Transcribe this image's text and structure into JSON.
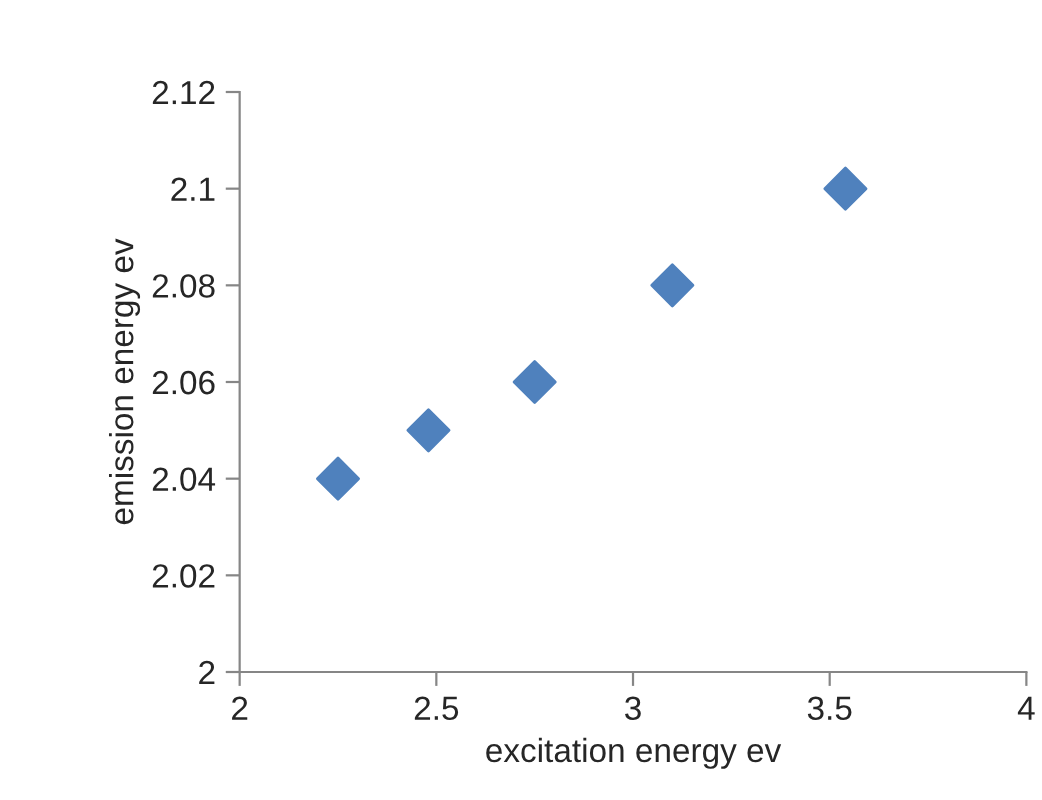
{
  "chart_data": {
    "type": "scatter",
    "xlabel": "excitation energy ev",
    "ylabel": "emission energy ev",
    "x": [
      2.25,
      2.48,
      2.75,
      3.1,
      3.54
    ],
    "series": [
      {
        "color": "#4f81bd",
        "values": [
          2.04,
          2.05,
          2.06,
          2.08,
          2.1
        ]
      }
    ],
    "marker": "diamond",
    "grid": false,
    "legend": false,
    "xlim": [
      2,
      4
    ],
    "xticks": [
      2,
      2.5,
      3,
      3.5,
      4
    ],
    "ylim": [
      2,
      2.12
    ],
    "yticks": [
      2,
      2.02,
      2.04,
      2.06,
      2.08,
      2.1,
      2.12
    ]
  }
}
